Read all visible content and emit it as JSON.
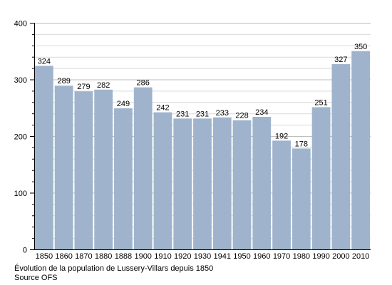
{
  "chart_data": {
    "type": "bar",
    "categories": [
      "1850",
      "1860",
      "1870",
      "1880",
      "1888",
      "1900",
      "1910",
      "1920",
      "1930",
      "1941",
      "1950",
      "1960",
      "1970",
      "1980",
      "1990",
      "2000",
      "2010"
    ],
    "values": [
      324,
      289,
      279,
      282,
      249,
      286,
      242,
      231,
      231,
      233,
      228,
      234,
      192,
      178,
      251,
      327,
      350
    ],
    "ylim": [
      0,
      400
    ],
    "yticks": [
      0,
      100,
      200,
      300,
      400
    ],
    "grid": true,
    "bar_color": "#9fb4cc",
    "grid_color": "#d9d9d9"
  },
  "caption": {
    "line1": "Évolution de la population de Lussery-Villars depuis 1850",
    "line2": "Source OFS"
  }
}
